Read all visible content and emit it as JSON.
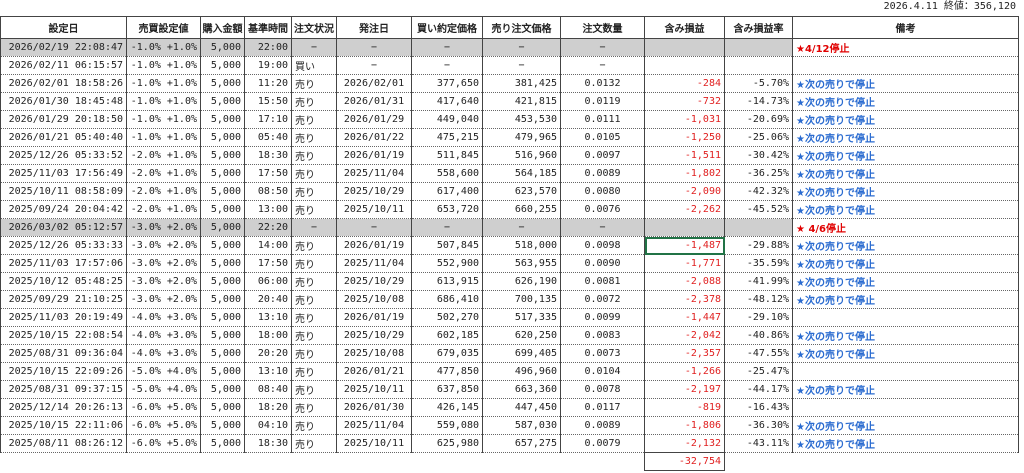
{
  "header": {
    "date": "2026.4.11",
    "close_label": "終値：356,120"
  },
  "table": {
    "columns": [
      "設定日",
      "売買設定値",
      "購入金額",
      "基準時間",
      "注文状況",
      "発注日",
      "買い約定価格",
      "売り注文価格",
      "注文数量",
      "含み損益",
      "含み損益率",
      "備考"
    ],
    "rows": [
      [
        "2026/02/19 22:08:47",
        "-1.0% +1.0%",
        "5,000",
        "22:00",
        "−",
        "−",
        "−",
        "−",
        "−",
        null,
        null,
        "★4/12停止"
      ],
      [
        "2026/02/11 06:15:57",
        "-1.0% +1.0%",
        "5,000",
        "19:00",
        "買い",
        "−",
        "−",
        "−",
        "−",
        null,
        null,
        null
      ],
      [
        "2026/02/01 18:58:26",
        "-1.0% +1.0%",
        "5,000",
        "11:20",
        "売り",
        "2026/02/01",
        "377,650",
        "381,425",
        "0.0132",
        "-284",
        "-5.70%",
        "★次の売りで停止"
      ],
      [
        "2026/01/30 18:45:48",
        "-1.0% +1.0%",
        "5,000",
        "15:50",
        "売り",
        "2026/01/31",
        "417,640",
        "421,815",
        "0.0119",
        "-732",
        "-14.73%",
        "★次の売りで停止"
      ],
      [
        "2026/01/29 20:18:50",
        "-1.0% +1.0%",
        "5,000",
        "17:10",
        "売り",
        "2026/01/29",
        "449,040",
        "453,530",
        "0.0111",
        "-1,031",
        "-20.69%",
        "★次の売りで停止"
      ],
      [
        "2026/01/21 05:40:40",
        "-1.0% +1.0%",
        "5,000",
        "05:40",
        "売り",
        "2026/01/22",
        "475,215",
        "479,965",
        "0.0105",
        "-1,250",
        "-25.06%",
        "★次の売りで停止"
      ],
      [
        "2025/12/26 05:33:52",
        "-2.0% +1.0%",
        "5,000",
        "18:30",
        "売り",
        "2026/01/19",
        "511,845",
        "516,960",
        "0.0097",
        "-1,511",
        "-30.42%",
        "★次の売りで停止"
      ],
      [
        "2025/11/03 17:56:49",
        "-2.0% +1.0%",
        "5,000",
        "17:50",
        "売り",
        "2025/11/04",
        "558,600",
        "564,185",
        "0.0089",
        "-1,802",
        "-36.25%",
        "★次の売りで停止"
      ],
      [
        "2025/10/11 08:58:09",
        "-2.0% +1.0%",
        "5,000",
        "08:50",
        "売り",
        "2025/10/29",
        "617,400",
        "623,570",
        "0.0080",
        "-2,090",
        "-42.32%",
        "★次の売りで停止"
      ],
      [
        "2025/09/24 20:04:42",
        "-2.0% +1.0%",
        "5,000",
        "13:00",
        "売り",
        "2025/10/11",
        "653,720",
        "660,255",
        "0.0076",
        "-2,262",
        "-45.52%",
        "★次の売りで停止"
      ],
      [
        "2026/03/02 05:12:57",
        "-3.0% +2.0%",
        "5,000",
        "22:20",
        "−",
        "−",
        "−",
        "−",
        "−",
        null,
        null,
        "★ 4/6停止"
      ],
      [
        "2025/12/26 05:33:33",
        "-3.0% +2.0%",
        "5,000",
        "14:00",
        "売り",
        "2026/01/19",
        "507,845",
        "518,000",
        "0.0098",
        "-1,487",
        "-29.88%",
        "★次の売りで停止"
      ],
      [
        "2025/11/03 17:57:06",
        "-3.0% +2.0%",
        "5,000",
        "17:50",
        "売り",
        "2025/11/04",
        "552,900",
        "563,955",
        "0.0090",
        "-1,771",
        "-35.59%",
        "★次の売りで停止"
      ],
      [
        "2025/10/12 05:48:25",
        "-3.0% +2.0%",
        "5,000",
        "06:00",
        "売り",
        "2025/10/29",
        "613,915",
        "626,190",
        "0.0081",
        "-2,088",
        "-41.99%",
        "★次の売りで停止"
      ],
      [
        "2025/09/29 21:10:25",
        "-3.0% +2.0%",
        "5,000",
        "20:40",
        "売り",
        "2025/10/08",
        "686,410",
        "700,135",
        "0.0072",
        "-2,378",
        "-48.12%",
        "★次の売りで停止"
      ],
      [
        "2025/11/03 20:19:49",
        "-4.0% +3.0%",
        "5,000",
        "13:10",
        "売り",
        "2026/01/19",
        "502,270",
        "517,335",
        "0.0099",
        "-1,447",
        "-29.10%",
        null
      ],
      [
        "2025/10/15 22:08:54",
        "-4.0% +3.0%",
        "5,000",
        "18:00",
        "売り",
        "2025/10/29",
        "602,185",
        "620,250",
        "0.0083",
        "-2,042",
        "-40.86%",
        "★次の売りで停止"
      ],
      [
        "2025/08/31 09:36:04",
        "-4.0% +3.0%",
        "5,000",
        "20:20",
        "売り",
        "2025/10/08",
        "679,035",
        "699,405",
        "0.0073",
        "-2,357",
        "-47.55%",
        "★次の売りで停止"
      ],
      [
        "2025/10/15 22:09:26",
        "-5.0% +4.0%",
        "5,000",
        "13:10",
        "売り",
        "2026/01/21",
        "477,850",
        "496,960",
        "0.0104",
        "-1,266",
        "-25.47%",
        null
      ],
      [
        "2025/08/31 09:37:15",
        "-5.0% +4.0%",
        "5,000",
        "08:40",
        "売り",
        "2025/10/11",
        "637,850",
        "663,360",
        "0.0078",
        "-2,197",
        "-44.17%",
        "★次の売りで停止"
      ],
      [
        "2025/12/14 20:26:13",
        "-6.0% +5.0%",
        "5,000",
        "18:20",
        "売り",
        "2026/01/30",
        "426,145",
        "447,450",
        "0.0117",
        "-819",
        "-16.43%",
        null
      ],
      [
        "2025/10/15 22:11:06",
        "-6.0% +5.0%",
        "5,000",
        "04:10",
        "売り",
        "2025/11/04",
        "559,080",
        "587,030",
        "0.0089",
        "-1,806",
        "-36.30%",
        "★次の売りで停止"
      ],
      [
        "2025/08/11 08:26:12",
        "-6.0% +5.0%",
        "5,000",
        "18:30",
        "売り",
        "2025/10/11",
        "625,980",
        "657,275",
        "0.0079",
        "-2,132",
        "-43.11%",
        "★次の売りで停止"
      ]
    ],
    "total": "-32,754"
  }
}
